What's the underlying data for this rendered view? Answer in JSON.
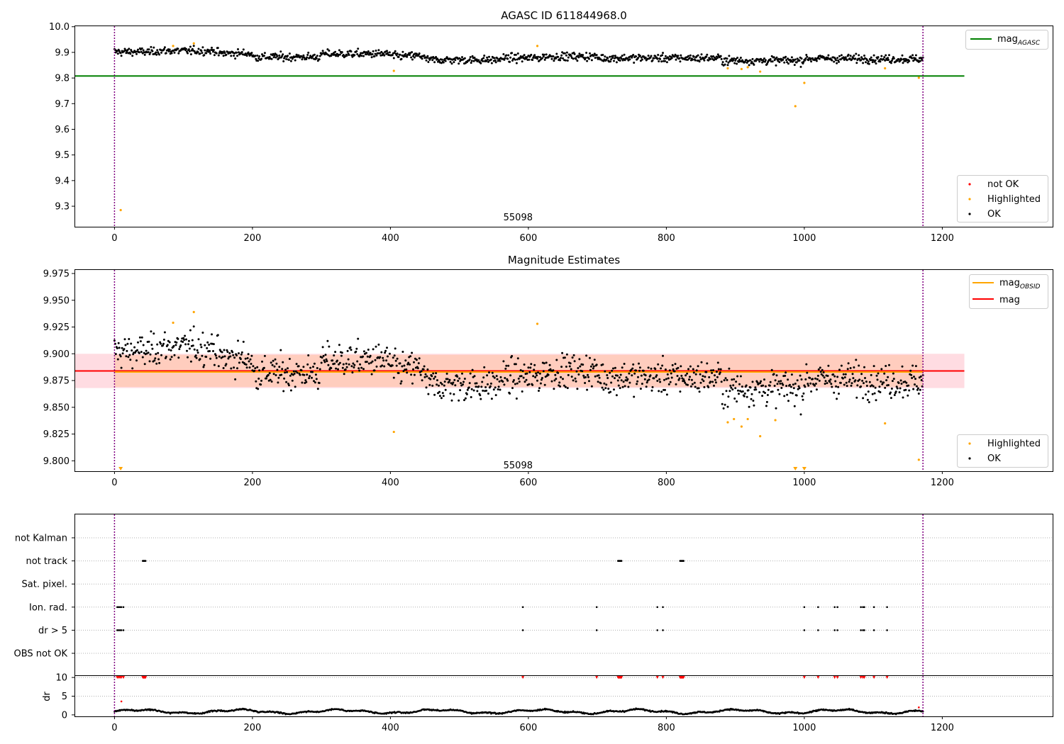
{
  "chart_data": [
    {
      "type": "scatter",
      "title": "AGASC ID 611844968.0",
      "xlim": [
        -58,
        1360
      ],
      "ylim": [
        9.22,
        10.002
      ],
      "xticks": [
        0,
        200,
        400,
        600,
        800,
        1000,
        1200
      ],
      "yticks": [
        9.3,
        9.4,
        9.5,
        9.6,
        9.7,
        9.8,
        9.9,
        10.0
      ],
      "ytick_labels": [
        "9.3",
        "9.4",
        "9.5",
        "9.6",
        "9.7",
        "9.8",
        "9.9",
        "10.0"
      ],
      "obsid_label": "55098",
      "obsid_label_pos": [
        585,
        9.245
      ],
      "vlines": [
        0,
        1172
      ],
      "mag_agasc": 9.808,
      "mag_agasc_xrange": [
        -58,
        1232
      ],
      "legend_top": {
        "placement": "top-right",
        "entries": [
          {
            "label_main": "mag",
            "label_sub": "AGASC",
            "color": "#008000"
          }
        ]
      },
      "legend_bottom": {
        "placement": "bottom-right",
        "entries": [
          {
            "label": "not OK",
            "color": "#ff0000"
          },
          {
            "label": "Highlighted",
            "color": "#ffa500"
          },
          {
            "label": "OK",
            "color": "#000000"
          }
        ]
      },
      "highlighted": [
        [
          9,
          9.285
        ],
        [
          85,
          9.925
        ],
        [
          115,
          9.935
        ],
        [
          405,
          9.828
        ],
        [
          613,
          9.925
        ],
        [
          889,
          9.838
        ],
        [
          909,
          9.835
        ],
        [
          918,
          9.842
        ],
        [
          936,
          9.825
        ],
        [
          987,
          9.69
        ],
        [
          1000,
          9.781
        ],
        [
          1117,
          9.838
        ],
        [
          1166,
          9.801
        ]
      ]
    },
    {
      "type": "scatter",
      "title": "Magnitude Estimates",
      "xlim": [
        -58,
        1360
      ],
      "ylim": [
        9.7903,
        9.9783
      ],
      "xticks": [
        0,
        200,
        400,
        600,
        800,
        1000,
        1200
      ],
      "yticks": [
        9.8,
        9.825,
        9.85,
        9.875,
        9.9,
        9.925,
        9.95,
        9.975
      ],
      "ytick_labels": [
        "9.800",
        "9.825",
        "9.850",
        "9.875",
        "9.900",
        "9.925",
        "9.950",
        "9.975"
      ],
      "obsid_label": "55098",
      "obsid_label_pos": [
        585,
        9.793
      ],
      "vlines": [
        0,
        1172
      ],
      "mag": 9.884,
      "mag_obsid": 9.883,
      "band_outer": [
        9.868,
        9.9
      ],
      "band_inner": [
        9.869,
        9.899
      ],
      "band_xrange": [
        -58,
        1232
      ],
      "legend_top": {
        "placement": "top-right",
        "entries": [
          {
            "label_main": "mag",
            "label_sub": "OBSID",
            "color": "#ffa500"
          },
          {
            "label": "mag",
            "color": "#ff0000"
          }
        ]
      },
      "legend_bottom": {
        "placement": "bottom-right",
        "entries": [
          {
            "label": "Highlighted",
            "color": "#ffa500"
          },
          {
            "label": "OK",
            "color": "#000000"
          }
        ]
      },
      "highlighted": [
        [
          85,
          9.929
        ],
        [
          115,
          9.939
        ],
        [
          405,
          9.827
        ],
        [
          613,
          9.928
        ],
        [
          889,
          9.836
        ],
        [
          898,
          9.839
        ],
        [
          909,
          9.832
        ],
        [
          918,
          9.839
        ],
        [
          936,
          9.823
        ],
        [
          958,
          9.838
        ],
        [
          1117,
          9.835
        ],
        [
          1166,
          9.801
        ]
      ],
      "below_range_markers": [
        9,
        987,
        1000
      ]
    },
    {
      "type": "scatter",
      "xlim": [
        -58,
        1360
      ],
      "categories": [
        "not Kalman",
        "not track",
        "Sat. pixel.",
        "Ion. rad.",
        "dr > 5",
        "OBS not OK"
      ],
      "vlines": [
        0,
        1172
      ],
      "flags": {
        "not track": [
          41,
          42,
          43,
          44,
          45,
          730,
          731,
          732,
          733,
          734,
          735,
          820,
          821,
          822,
          823,
          824,
          825
        ],
        "Ion. rad.": [
          4,
          6,
          8,
          10,
          13,
          592,
          699,
          787,
          795,
          1000,
          1020,
          1044,
          1048,
          1082,
          1085,
          1087,
          1101,
          1120
        ],
        "dr > 5": [
          4,
          6,
          8,
          10,
          13,
          592,
          699,
          787,
          795,
          1000,
          1020,
          1044,
          1048,
          1082,
          1085,
          1087,
          1101,
          1120
        ]
      }
    },
    {
      "type": "scatter",
      "ylabel": "dr",
      "xlim": [
        -58,
        1360
      ],
      "ylim": [
        -0.4,
        10.4
      ],
      "xticks": [
        0,
        200,
        400,
        600,
        800,
        1000,
        1200
      ],
      "yticks": [
        0,
        5,
        10
      ],
      "hlines": [
        10,
        5
      ],
      "red_at_10": [
        4,
        6,
        8,
        10,
        13,
        41,
        42,
        43,
        44,
        45,
        592,
        699,
        730,
        731,
        732,
        733,
        734,
        735,
        787,
        795,
        820,
        821,
        822,
        823,
        824,
        825,
        1000,
        1020,
        1044,
        1048,
        1082,
        1085,
        1087,
        1101,
        1120
      ],
      "red_low": [
        [
          10,
          3.6
        ],
        [
          1166,
          2.0
        ]
      ]
    }
  ]
}
